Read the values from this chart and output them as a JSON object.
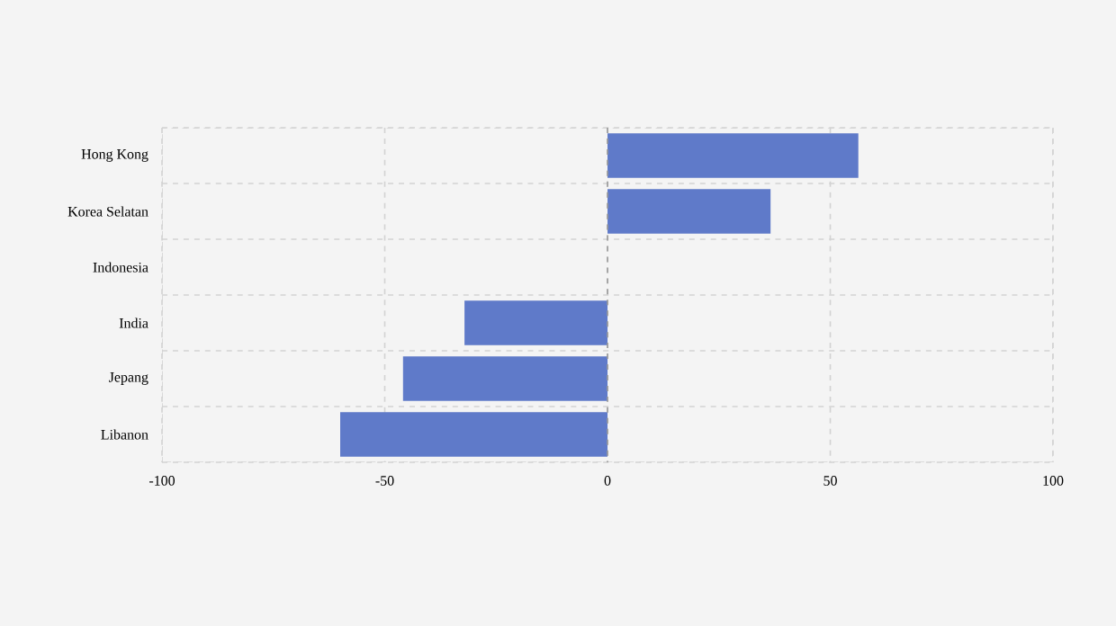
{
  "chart_data": {
    "type": "bar",
    "orientation": "horizontal",
    "categories": [
      "Hong Kong",
      "Korea Selatan",
      "Indonesia",
      "India",
      "Jepang",
      "Libanon"
    ],
    "values": [
      56.3,
      36.6,
      0,
      -32.1,
      -45.9,
      -60
    ],
    "color": "#5f7ac9",
    "ref_lines": [
      {
        "axis": "x",
        "value": 0,
        "color": "#999999",
        "line_style": "dashed"
      }
    ],
    "xlim": [
      -100,
      100
    ],
    "xticks": [
      -100,
      -50,
      0,
      50,
      100
    ],
    "grid": true
  }
}
